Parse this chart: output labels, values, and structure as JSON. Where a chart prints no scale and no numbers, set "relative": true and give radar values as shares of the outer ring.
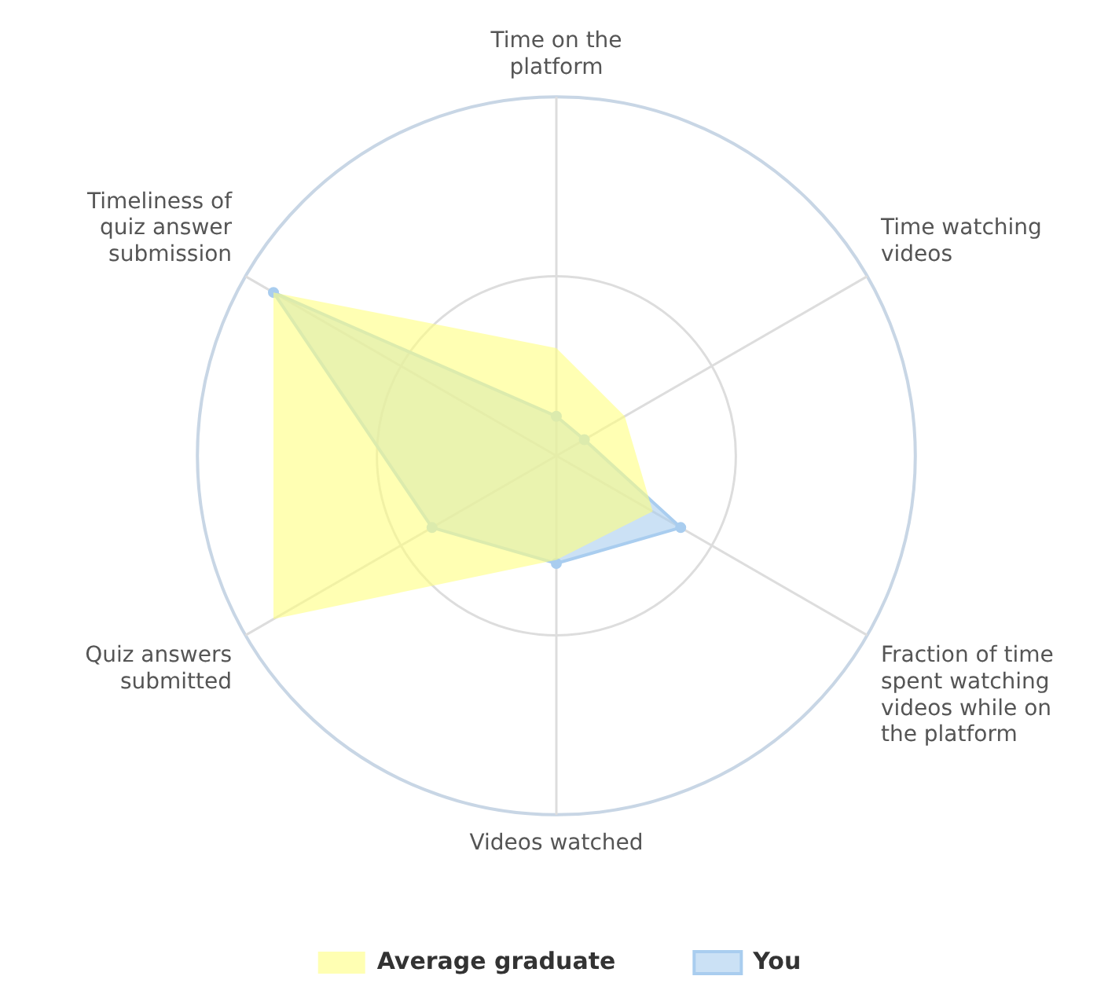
{
  "chart_data": {
    "type": "radar",
    "relative": true,
    "legend": "bottom",
    "marker": "circle",
    "categories": [
      "Time on the platform",
      "Time watching videos",
      "Fraction of time spent watching videos while on the platform",
      "Videos watched",
      "Quiz answers submitted",
      "Timeliness of quiz answer submission"
    ],
    "series": [
      {
        "name": "Average graduate",
        "color": "#ffff80",
        "values": [
          0.3,
          0.22,
          0.31,
          0.29,
          0.91,
          0.91
        ]
      },
      {
        "name": "You",
        "color": "#a9cdef",
        "values": [
          0.11,
          0.09,
          0.4,
          0.3,
          0.4,
          0.91
        ]
      }
    ]
  }
}
